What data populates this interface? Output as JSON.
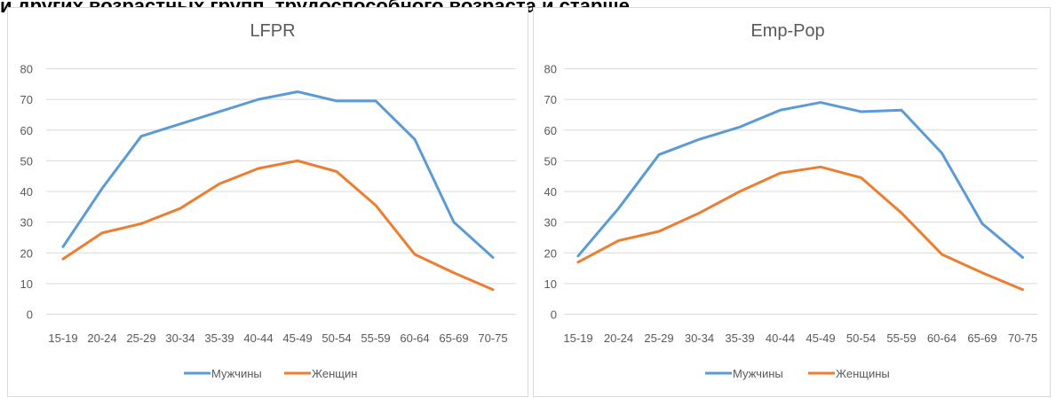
{
  "caption": "и других возрастных групп, трудоспособного возраста и старше",
  "colors": {
    "men": "#5b9bd5",
    "women": "#ed7d31"
  },
  "chart_data": [
    {
      "type": "line",
      "title": "LFPR",
      "categories": [
        "15-19",
        "20-24",
        "25-29",
        "30-34",
        "35-39",
        "40-44",
        "45-49",
        "50-54",
        "55-59",
        "60-64",
        "65-69",
        "70-75"
      ],
      "ylim": [
        0,
        80
      ],
      "yticks": [
        "0",
        "10",
        "20",
        "30",
        "40",
        "50",
        "60",
        "70",
        "80"
      ],
      "grid": true,
      "legend_position": "bottom",
      "series": [
        {
          "name": "Мужчины",
          "color": "#5b9bd5",
          "values": [
            22,
            41,
            58,
            62,
            66,
            70,
            72.5,
            69.5,
            69.5,
            57,
            30,
            18.5
          ]
        },
        {
          "name": "Женщин",
          "color": "#ed7d31",
          "values": [
            18,
            26.5,
            29.5,
            34.5,
            42.5,
            47.5,
            50,
            46.5,
            35.5,
            19.5,
            13.5,
            8
          ]
        }
      ]
    },
    {
      "type": "line",
      "title": "Emp-Pop",
      "categories": [
        "15-19",
        "20-24",
        "25-29",
        "30-34",
        "35-39",
        "40-44",
        "45-49",
        "50-54",
        "55-59",
        "60-64",
        "65-69",
        "70-75"
      ],
      "ylim": [
        0,
        80
      ],
      "yticks": [
        "0",
        "10",
        "20",
        "30",
        "40",
        "50",
        "60",
        "70",
        "80"
      ],
      "grid": true,
      "legend_position": "bottom",
      "series": [
        {
          "name": "Мужчины",
          "color": "#5b9bd5",
          "values": [
            19,
            34.5,
            52,
            57,
            61,
            66.5,
            69,
            66,
            66.5,
            52.5,
            29.5,
            18.5
          ]
        },
        {
          "name": "Женщины",
          "color": "#ed7d31",
          "values": [
            17,
            24,
            27,
            33,
            40,
            46,
            48,
            44.5,
            33,
            19.5,
            13.5,
            8
          ]
        }
      ]
    }
  ]
}
